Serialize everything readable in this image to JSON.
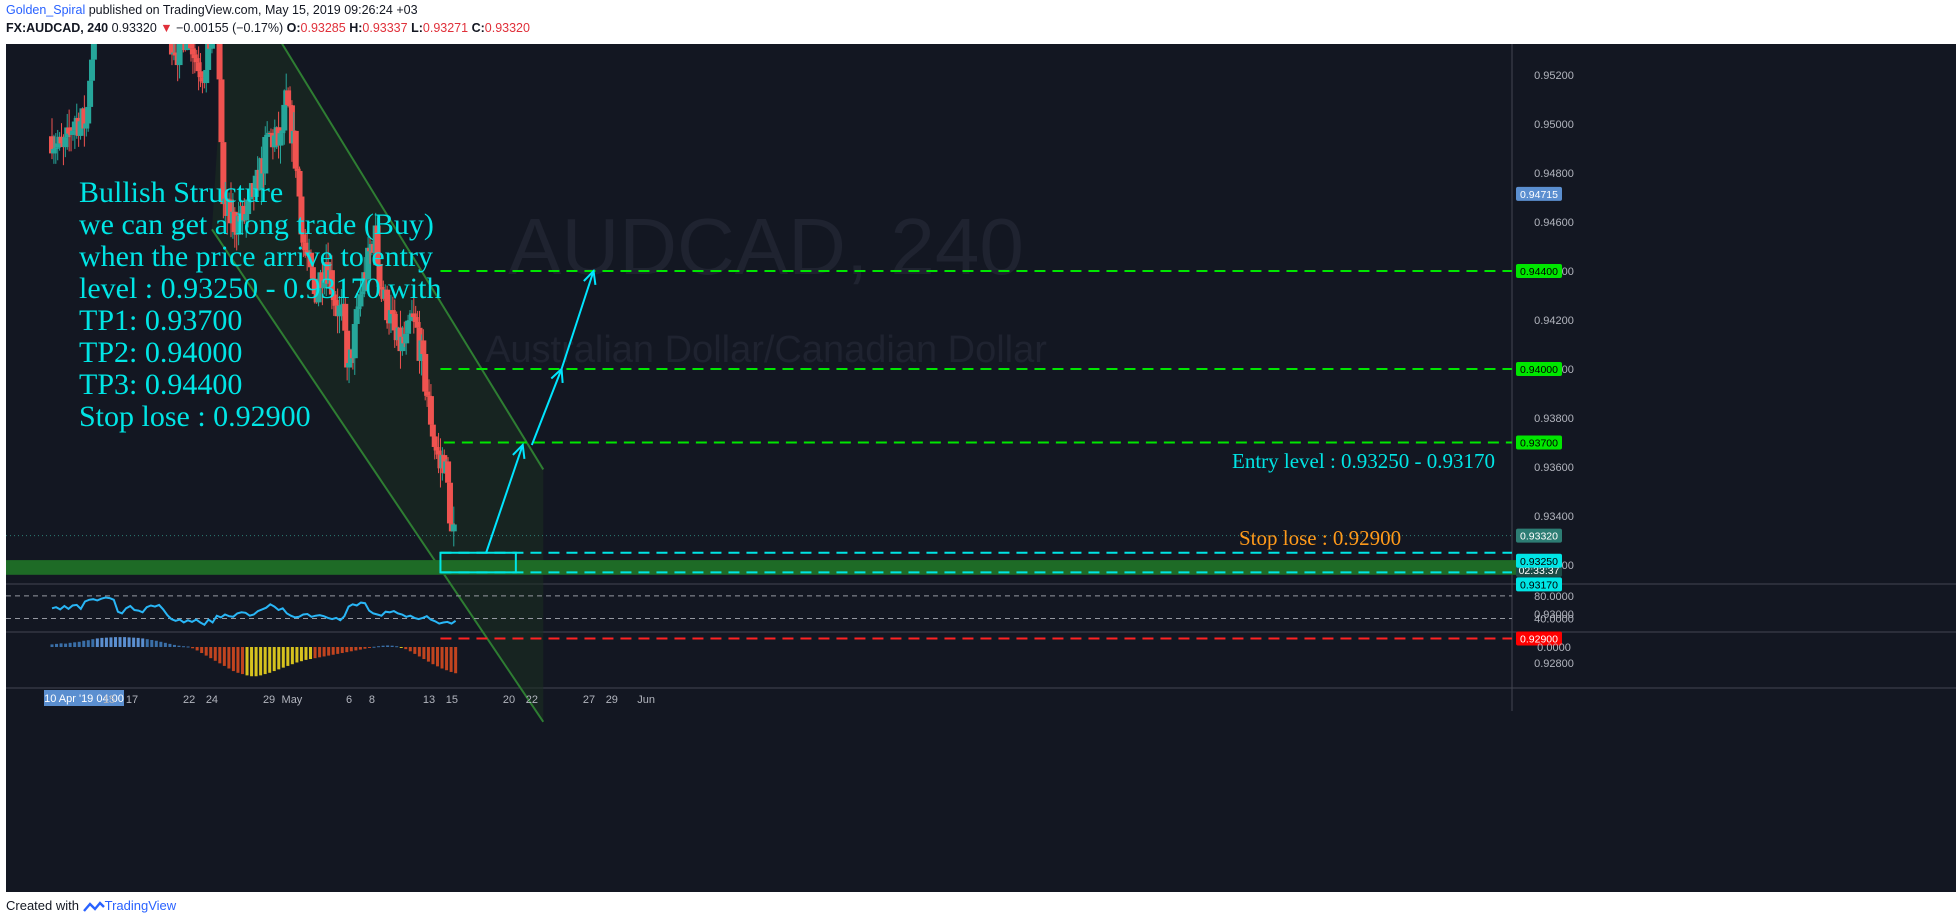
{
  "header": {
    "author": "Golden_Spiral",
    "published_text": "published on TradingView.com, May 15, 2019 09:26:24 +03",
    "symbol": "FX:AUDCAD, 240",
    "last_price": "0.93320",
    "change": "−0.00155 (−0.17%)",
    "o_label": "O:",
    "o_value": "0.93285",
    "h_label": "H:",
    "h_value": "0.93337",
    "l_label": "L:",
    "l_value": "0.93271",
    "c_label": "C:",
    "c_value": "0.93320"
  },
  "footer": {
    "created_with": "Created with",
    "brand": "TradingView"
  },
  "chart_data": [
    {
      "type": "candlestick",
      "watermark": "AUDCAD, 240",
      "watermark_subtitle": "Australian Dollar/Canadian Dollar",
      "ylim": [
        0.9261,
        0.9544
      ],
      "y_ticks": [
        "0.95200",
        "0.95000",
        "0.94800",
        "0.94600",
        "0.94400",
        "0.94200",
        "0.94000",
        "0.93800",
        "0.93600",
        "0.93400",
        "0.93200",
        "0.93000",
        "0.92800"
      ],
      "y_tick_values": [
        0.952,
        0.95,
        0.948,
        0.946,
        0.944,
        0.942,
        0.94,
        0.938,
        0.936,
        0.934,
        0.932,
        0.93,
        0.928
      ],
      "x_ticks": [
        "10 Apr '19   04:00",
        "15",
        "17",
        "22",
        "24",
        "29",
        "May",
        "6",
        "8",
        "13",
        "15",
        "20",
        "22",
        "27",
        "29",
        "Jun"
      ],
      "x_tick_days": [
        0,
        5,
        7,
        12,
        14,
        19,
        21,
        26,
        28,
        33,
        35,
        40,
        42,
        47,
        49,
        52
      ],
      "last_day": 35.33,
      "axis_badges": [
        {
          "label": "0.94715",
          "value": 0.94715,
          "bg": "#5b8fd0",
          "fg": "#ffffff"
        },
        {
          "label": "0.94400",
          "value": 0.944,
          "bg": "#00e600",
          "fg": "#000000"
        },
        {
          "label": "0.94000",
          "value": 0.94,
          "bg": "#00e600",
          "fg": "#000000"
        },
        {
          "label": "0.93700",
          "value": 0.937,
          "bg": "#00e600",
          "fg": "#000000"
        },
        {
          "label": "0.93320",
          "value": 0.9332,
          "bg": "#2d7d74",
          "fg": "#ffffff"
        },
        {
          "label": "02:33:37",
          "value": 0.9318,
          "bg": "#1d4a46",
          "fg": "#ffffff"
        },
        {
          "label": "0.93250",
          "value": 0.9325,
          "bg": "#00e5e5",
          "fg": "#000000",
          "offset": 8
        },
        {
          "label": "0.93170",
          "value": 0.9317,
          "bg": "#00e5e5",
          "fg": "#000000",
          "offset": 12
        },
        {
          "label": "0.92900",
          "value": 0.929,
          "bg": "#ff0000",
          "fg": "#ffffff"
        }
      ],
      "horizontal_levels": [
        {
          "name": "TP3",
          "value": 0.944,
          "color": "#00e600",
          "from_day": 34
        },
        {
          "name": "TP2",
          "value": 0.94,
          "color": "#00e600",
          "from_day": 34
        },
        {
          "name": "TP1",
          "value": 0.937,
          "color": "#00e600",
          "from_day": 34.3
        },
        {
          "name": "Entry high",
          "value": 0.9325,
          "color": "#00e5e5",
          "from_day": 34
        },
        {
          "name": "Entry low",
          "value": 0.9317,
          "color": "#00e5e5",
          "from_day": 34
        },
        {
          "name": "Stop",
          "value": 0.929,
          "color": "#ff2222",
          "from_day": 34
        }
      ],
      "demand_zone": {
        "from": 0.9316,
        "to": 0.9322
      },
      "channel": {
        "upper": [
          [
            15.5,
            0.9568
          ],
          [
            43,
            0.9359
          ]
        ],
        "lower": [
          [
            14,
            0.9457
          ],
          [
            43,
            0.9256
          ]
        ]
      },
      "projection_arrows": [
        {
          "from": [
            38,
            0.9325
          ],
          "to": [
            41.2,
            0.9369
          ]
        },
        {
          "from": [
            42,
            0.9369
          ],
          "to": [
            44.6,
            0.94
          ]
        },
        {
          "from": [
            44.6,
            0.94
          ],
          "to": [
            47.4,
            0.944
          ]
        }
      ],
      "annotations": [
        {
          "text": "Entry level : 0.93250 - 0.93170",
          "color": "#00e5e5"
        },
        {
          "text": "Stop lose : 0.92900",
          "color": "#ff9a1a"
        }
      ],
      "idea_text": [
        "Bullish  Structure",
        "we can get a long trade (Buy)",
        "when the price arrive to entry",
        "level : 0.93250 - 0.93170  with",
        "TP1: 0.93700",
        "TP2: 0.94000",
        "TP3: 0.94400",
        "Stop lose : 0.92900"
      ],
      "anchors": [
        [
          0,
          0.9495
        ],
        [
          1,
          0.9488
        ],
        [
          2,
          0.9502
        ],
        [
          3,
          0.95
        ],
        [
          3.5,
          0.953
        ],
        [
          4,
          0.955
        ],
        [
          5,
          0.956
        ],
        [
          7,
          0.9555
        ],
        [
          8,
          0.9545
        ],
        [
          9,
          0.955
        ],
        [
          11,
          0.953
        ],
        [
          12,
          0.954
        ],
        [
          12.5,
          0.9528
        ],
        [
          13.5,
          0.952
        ],
        [
          14,
          0.954
        ],
        [
          14.5,
          0.9548
        ],
        [
          15,
          0.9465
        ],
        [
          16,
          0.946
        ],
        [
          17,
          0.9462
        ],
        [
          17.5,
          0.947
        ],
        [
          18,
          0.9475
        ],
        [
          19,
          0.9495
        ],
        [
          20,
          0.9492
        ],
        [
          20.5,
          0.9508
        ],
        [
          21,
          0.9498
        ],
        [
          21.5,
          0.948
        ],
        [
          22,
          0.9452
        ],
        [
          23,
          0.943
        ],
        [
          24,
          0.9445
        ],
        [
          25,
          0.9425
        ],
        [
          25.5,
          0.942
        ],
        [
          26,
          0.9398
        ],
        [
          27,
          0.943
        ],
        [
          28,
          0.945
        ],
        [
          28.3,
          0.9455
        ],
        [
          28.6,
          0.944
        ],
        [
          29,
          0.943
        ],
        [
          29.7,
          0.942
        ],
        [
          30.2,
          0.941
        ],
        [
          31,
          0.941
        ],
        [
          31.5,
          0.942
        ],
        [
          32,
          0.9415
        ],
        [
          32.5,
          0.94
        ],
        [
          33,
          0.9385
        ],
        [
          33.5,
          0.937
        ],
        [
          34,
          0.936
        ],
        [
          34.3,
          0.9365
        ],
        [
          34.7,
          0.935
        ],
        [
          35,
          0.9332
        ],
        [
          35.33,
          0.9332
        ]
      ],
      "indicators": [
        {
          "type": "line",
          "name": "RSI",
          "levels": [
            "80.0000",
            "40.0000"
          ],
          "values": [
            58,
            60,
            56,
            62,
            57,
            63,
            64,
            57,
            70,
            73,
            74,
            72,
            75,
            77,
            76,
            73,
            52,
            49,
            58,
            62,
            55,
            54,
            51,
            60,
            63,
            61,
            64,
            56,
            46,
            39,
            36,
            38,
            33,
            37,
            34,
            38,
            33,
            29,
            38,
            33,
            45,
            42,
            47,
            44,
            43,
            49,
            51,
            50,
            45,
            47,
            53,
            56,
            59,
            65,
            61,
            55,
            58,
            49,
            45,
            42,
            43,
            47,
            48,
            43,
            45,
            46,
            44,
            41,
            39,
            41,
            37,
            44,
            61,
            65,
            63,
            68,
            67,
            54,
            49,
            47,
            45,
            52,
            51,
            53,
            49,
            47,
            43,
            45,
            41,
            39,
            41,
            44,
            38,
            35,
            31,
            33,
            34,
            31,
            36
          ]
        },
        {
          "type": "histogram",
          "name": "MACD",
          "level_label": "0.0000",
          "values": [
            0.1,
            0.12,
            0.14,
            0.13,
            0.16,
            0.18,
            0.2,
            0.24,
            0.26,
            0.3,
            0.33,
            0.35,
            0.36,
            0.37,
            0.38,
            0.38,
            0.38,
            0.37,
            0.36,
            0.35,
            0.33,
            0.3,
            0.27,
            0.24,
            0.2,
            0.16,
            0.12,
            0.08,
            0.05,
            0.03,
            0.02,
            -0.03,
            -0.08,
            -0.14,
            -0.2,
            -0.26,
            -0.32,
            -0.38,
            -0.44,
            -0.5,
            -0.56,
            -0.6,
            -0.63,
            -0.66,
            -0.68,
            -0.68,
            -0.66,
            -0.63,
            -0.6,
            -0.56,
            -0.52,
            -0.48,
            -0.44,
            -0.4,
            -0.36,
            -0.33,
            -0.3,
            -0.28,
            -0.26,
            -0.24,
            -0.22,
            -0.2,
            -0.18,
            -0.16,
            -0.14,
            -0.12,
            -0.1,
            -0.08,
            -0.06,
            -0.04,
            -0.02,
            0.01,
            0.03,
            0.05,
            0.06,
            0.05,
            0.03,
            -0.01,
            -0.05,
            -0.1,
            -0.16,
            -0.22,
            -0.28,
            -0.34,
            -0.4,
            -0.45,
            -0.5,
            -0.54,
            -0.58,
            -0.61
          ]
        }
      ],
      "colors": {
        "background": "#131722",
        "up": "#26a69a",
        "down": "#ef5350",
        "grid": "#3a3e4a",
        "channel": "#2e7d32",
        "text": "#00e5e5",
        "rsi": "#29b6f6"
      }
    }
  ]
}
